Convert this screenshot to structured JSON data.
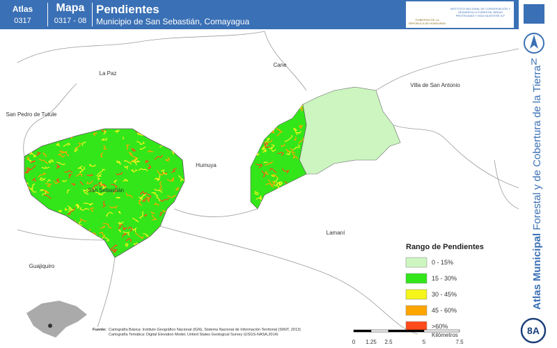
{
  "header": {
    "atlas_label": "Atlas",
    "atlas_code": "0317",
    "map_label": "Mapa",
    "map_code": "0317 - 08",
    "title": "Pendientes",
    "subtitle": "Municipio de San Sebastián, Comayagua",
    "logo_left": "GOBIERNO DE LA REPÚBLICA DE HONDURAS",
    "logo_right": "INSTITUTO NACIONAL DE CONSERVACIÓN Y DESARROLLO FORESTAL ÁREAS PROTEGIDAS Y VIDA SILVESTRE ICF"
  },
  "side": {
    "north": "N",
    "title_bold": "Atlas Municipal",
    "title_rest": "Forestal y de Cobertura de la Tierra",
    "badge": "8A"
  },
  "places": [
    "La Paz",
    "Cane",
    "Villa de San Antonio",
    "San Pedro de Tutule",
    "Humuya",
    "San Sebastián",
    "Lamaní",
    "Guajiquiro"
  ],
  "legend": {
    "title": "Rango de Pendientes",
    "items": [
      {
        "label": "0 - 15%",
        "color": "#ccf5c0"
      },
      {
        "label": "15 - 30%",
        "color": "#33e61a"
      },
      {
        "label": "30 - 45%",
        "color": "#f5f51a"
      },
      {
        "label": "45 - 60%",
        "color": "#ffa500"
      },
      {
        "label": ">60%",
        "color": "#ff4a1a"
      }
    ]
  },
  "scale": {
    "ticks": [
      "0",
      "1.25",
      "2.5",
      "5",
      "7.5"
    ],
    "unit": "Kilómetros"
  },
  "source": {
    "label": "Fuente:",
    "line1": "Cartografía Básica: Instituto Geográfico Nacional (IGN), Sistema Nacional de Información Territorial (SINIT, 2013)",
    "line2": "Cartografía Temática: Digital Elevation Model, United States Geological Survey (USGS-NASA,2014)"
  }
}
